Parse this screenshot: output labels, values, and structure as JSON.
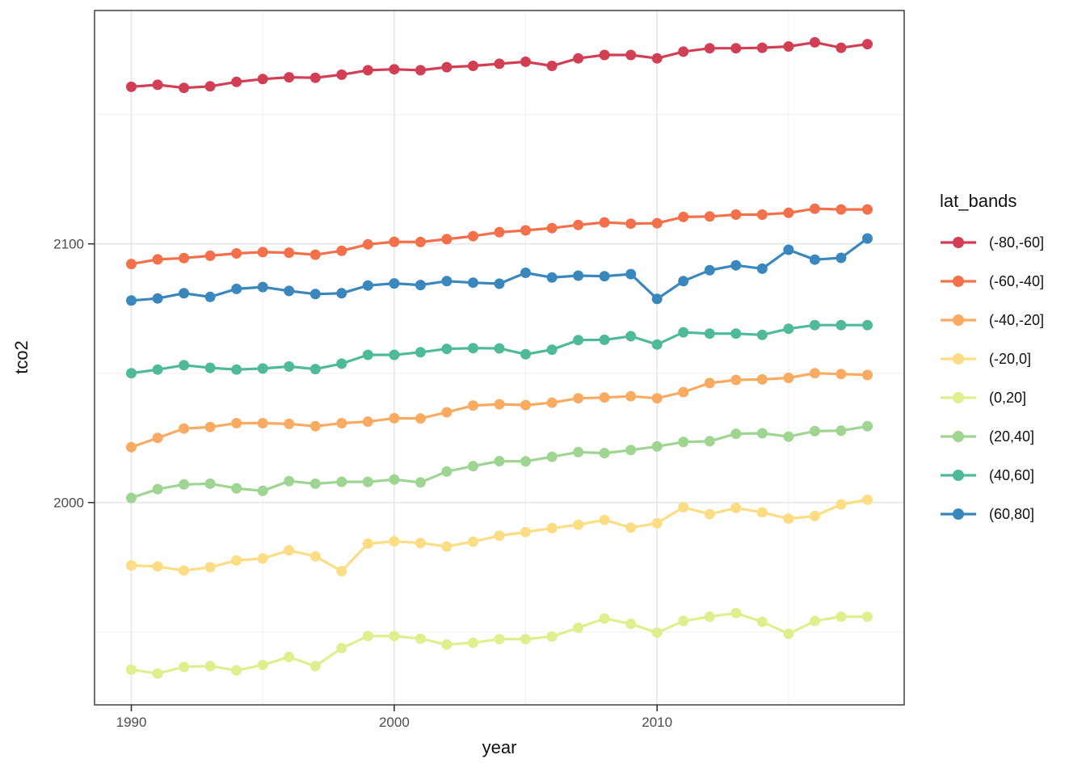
{
  "figure": {
    "background": "#ffffff"
  },
  "style": {
    "panel_background": "#ffffff",
    "panel_border": "#333333",
    "grid_major": "#e7e7e7",
    "grid_minor": "#f1f1f1",
    "tick_mark_color": "#333333",
    "tick_label_color": "#4d4d4d",
    "axis_title_color": "#111111",
    "legend_text_color": "#111111"
  },
  "axes": {
    "x_title": "year",
    "y_title": "tco2",
    "x_tick_labels": [
      "1990",
      "2000",
      "2010"
    ],
    "y_tick_labels": [
      "2000",
      "2100"
    ]
  },
  "legend": {
    "title": "lat_bands"
  },
  "chart_data": {
    "type": "line",
    "title": "",
    "xlabel": "year",
    "ylabel": "tco2",
    "legend_title": "lat_bands",
    "legend_position": "right",
    "grid": true,
    "point_marker": "circle",
    "xlim": [
      1988.6,
      2019.4
    ],
    "ylim": [
      1921.8,
      2190.2
    ],
    "x_ticks": [
      1990,
      2000,
      2010
    ],
    "y_ticks": [
      2000,
      2100
    ],
    "x_minor_ticks": [
      1995,
      2005,
      2015
    ],
    "y_minor_ticks": [
      1950,
      2050,
      2150
    ],
    "x": [
      1990,
      1991,
      1992,
      1993,
      1994,
      1995,
      1996,
      1997,
      1998,
      1999,
      2000,
      2001,
      2002,
      2003,
      2004,
      2005,
      2006,
      2007,
      2008,
      2009,
      2010,
      2011,
      2012,
      2013,
      2014,
      2015,
      2016,
      2017,
      2018
    ],
    "series": [
      {
        "name": "(-80,-60]",
        "color": "#d23f54",
        "values": [
          2160.7,
          2161.5,
          2160.3,
          2160.9,
          2162.6,
          2163.7,
          2164.4,
          2164.2,
          2165.4,
          2167.1,
          2167.5,
          2167.1,
          2168.3,
          2168.8,
          2169.6,
          2170.4,
          2168.8,
          2171.7,
          2173.0,
          2173.0,
          2171.7,
          2174.3,
          2175.6,
          2175.6,
          2175.8,
          2176.3,
          2177.9,
          2175.8,
          2177.2
        ]
      },
      {
        "name": "(-60,-40]",
        "color": "#f3704a",
        "values": [
          2092.2,
          2094.0,
          2094.5,
          2095.4,
          2096.3,
          2096.8,
          2096.6,
          2095.8,
          2097.3,
          2099.8,
          2100.8,
          2100.7,
          2101.8,
          2103.0,
          2104.5,
          2105.2,
          2106.1,
          2107.3,
          2108.3,
          2107.8,
          2108.0,
          2110.4,
          2110.6,
          2111.3,
          2111.3,
          2112.0,
          2113.6,
          2113.3,
          2113.3
        ]
      },
      {
        "name": "(-40,-20]",
        "color": "#f9ab61",
        "values": [
          2021.4,
          2025.0,
          2028.6,
          2029.2,
          2030.7,
          2030.7,
          2030.4,
          2029.5,
          2030.7,
          2031.3,
          2032.6,
          2032.5,
          2034.9,
          2037.5,
          2038.0,
          2037.7,
          2038.6,
          2040.3,
          2040.6,
          2041.1,
          2040.3,
          2042.7,
          2046.2,
          2047.4,
          2047.6,
          2048.2,
          2050.0,
          2049.7,
          2049.3
        ]
      },
      {
        "name": "(-20,0]",
        "color": "#fcdd84",
        "values": [
          1975.7,
          1975.3,
          1973.7,
          1975.0,
          1977.6,
          1978.4,
          1981.5,
          1979.2,
          1973.5,
          1984.1,
          1985.0,
          1984.4,
          1983.0,
          1984.9,
          1987.2,
          1988.6,
          1990.1,
          1991.4,
          1993.3,
          1990.3,
          1992.0,
          1998.2,
          1995.5,
          1997.9,
          1996.2,
          1993.8,
          1994.8,
          1999.3,
          2001.1
        ]
      },
      {
        "name": "(0,20]",
        "color": "#def08d",
        "values": [
          1935.4,
          1933.9,
          1936.5,
          1936.8,
          1935.1,
          1937.2,
          1940.3,
          1936.8,
          1943.7,
          1948.4,
          1948.4,
          1947.4,
          1945.1,
          1945.8,
          1947.2,
          1947.2,
          1948.2,
          1951.6,
          1955.2,
          1953.1,
          1949.7,
          1954.2,
          1955.9,
          1957.3,
          1953.9,
          1949.3,
          1954.2,
          1955.9,
          1955.9
        ]
      },
      {
        "name": "(20,40]",
        "color": "#9ed591",
        "values": [
          2001.8,
          2005.2,
          2007.0,
          2007.3,
          2005.5,
          2004.5,
          2008.3,
          2007.3,
          2008.0,
          2008.0,
          2008.9,
          2007.8,
          2012.0,
          2014.1,
          2016.0,
          2015.9,
          2017.7,
          2019.5,
          2019.1,
          2020.3,
          2021.7,
          2023.4,
          2023.7,
          2026.6,
          2026.8,
          2025.5,
          2027.6,
          2027.8,
          2029.5
        ]
      },
      {
        "name": "(40,60]",
        "color": "#4fba9a",
        "values": [
          2050.0,
          2051.4,
          2053.1,
          2052.1,
          2051.4,
          2051.8,
          2052.6,
          2051.6,
          2053.7,
          2057.1,
          2057.1,
          2058.1,
          2059.4,
          2059.7,
          2059.6,
          2057.3,
          2059.1,
          2062.8,
          2062.9,
          2064.3,
          2061.1,
          2065.8,
          2065.3,
          2065.3,
          2064.8,
          2067.2,
          2068.6,
          2068.6,
          2068.6
        ]
      },
      {
        "name": "(60,80]",
        "color": "#3a87bd",
        "values": [
          2078.1,
          2078.9,
          2080.9,
          2079.5,
          2082.6,
          2083.3,
          2081.8,
          2080.6,
          2080.9,
          2083.9,
          2084.7,
          2084.1,
          2085.6,
          2085.0,
          2084.6,
          2088.8,
          2087.0,
          2087.7,
          2087.5,
          2088.3,
          2078.7,
          2085.6,
          2089.8,
          2091.7,
          2090.4,
          2097.7,
          2093.9,
          2094.6,
          2102.1
        ]
      }
    ]
  }
}
